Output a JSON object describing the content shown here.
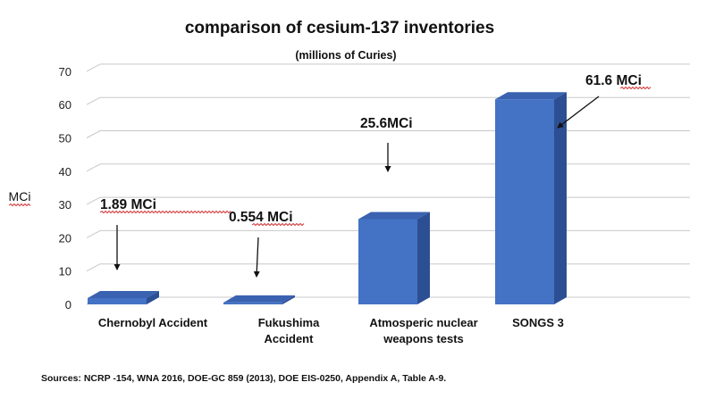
{
  "chart_data": {
    "type": "bar",
    "title": "comparison of cesium-137 inventories",
    "subtitle": "(millions of Curies)",
    "ylabel": "MCi",
    "ylim": [
      0,
      70
    ],
    "yticks": [
      0,
      10,
      20,
      30,
      40,
      50,
      60,
      70
    ],
    "grid": true,
    "categories": [
      "Chernobyl Accident",
      "Fukushima Accident",
      "Atmosperic nuclear weapons tests",
      "SONGS 3"
    ],
    "category_lines": [
      [
        "Chernobyl Accident"
      ],
      [
        "Fukushima",
        "Accident"
      ],
      [
        "Atmosperic nuclear",
        "weapons tests"
      ],
      [
        "SONGS 3"
      ]
    ],
    "values": [
      1.89,
      0.554,
      25.6,
      61.6
    ],
    "annotations": [
      "1.89 MCi",
      "0.554 MCi",
      "25.6MCi",
      "61.6 MCi"
    ],
    "source": "Sources: NCRP -154, WNA 2016, DOE-GC 859 (2013), DOE EIS-0250, Appendix A, Table A-9.",
    "colors": {
      "bar_front": "#4472c4",
      "bar_top": "#3a62b0",
      "bar_side": "#2c4f93"
    }
  }
}
